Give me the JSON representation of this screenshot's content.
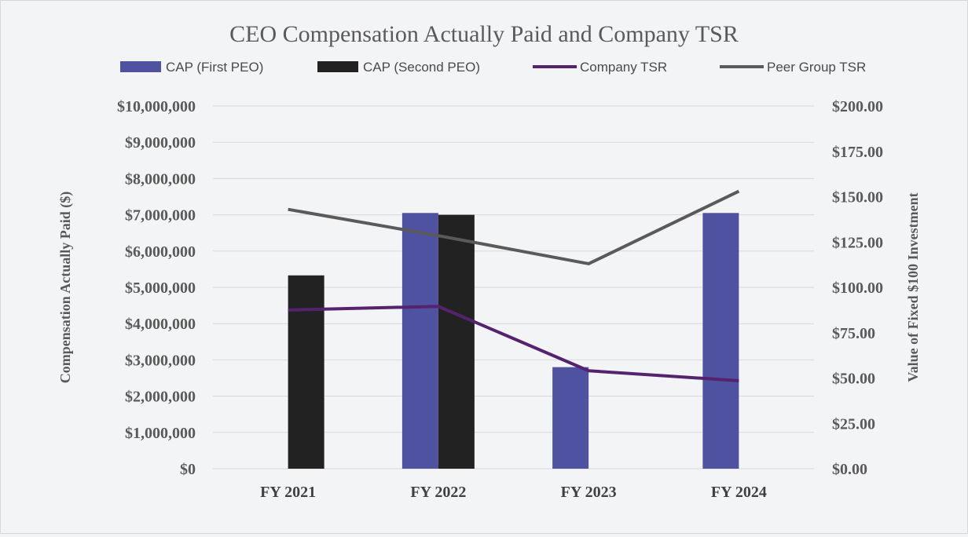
{
  "chart_data": {
    "type": "bar",
    "title": "CEO Compensation Actually Paid and Company TSR",
    "categories": [
      "FY 2021",
      "FY 2022",
      "FY 2023",
      "FY 2024"
    ],
    "bar_series": [
      {
        "name": "CAP (First PEO)",
        "color": "#4f52a0",
        "values": [
          null,
          7050000,
          2800000,
          7050000
        ]
      },
      {
        "name": "CAP (Second PEO)",
        "color": "#222222",
        "values": [
          5330000,
          7000000,
          null,
          null
        ]
      }
    ],
    "line_series": [
      {
        "name": "Company TSR",
        "color": "#55226e",
        "values": [
          87.5,
          89.5,
          54,
          48.5
        ]
      },
      {
        "name": "Peer Group TSR",
        "color": "#5a5a5a",
        "values": [
          143,
          128.5,
          113,
          153
        ]
      }
    ],
    "ylabel": "Compensation Actually Paid ($)",
    "y2label": "Value of Fixed $100 Investment",
    "ylim": [
      0,
      10000000
    ],
    "y2lim": [
      0,
      200
    ],
    "yticks": [
      "$0",
      "$1,000,000",
      "$2,000,000",
      "$3,000,000",
      "$4,000,000",
      "$5,000,000",
      "$6,000,000",
      "$7,000,000",
      "$8,000,000",
      "$9,000,000",
      "$10,000,000"
    ],
    "y2ticks": [
      "$0.00",
      "$25.00",
      "$50.00",
      "$75.00",
      "$100.00",
      "$125.00",
      "$150.00",
      "$175.00",
      "$200.00"
    ],
    "legend_position": "top"
  }
}
